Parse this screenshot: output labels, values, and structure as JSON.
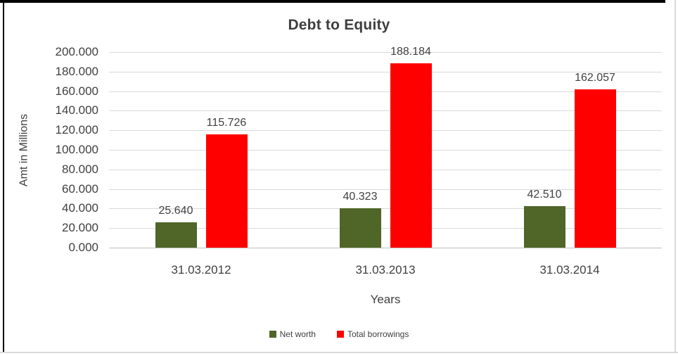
{
  "chart_data": {
    "type": "bar",
    "title": "Debt to Equity",
    "xlabel": "Years",
    "ylabel": "Amt in Millions",
    "categories": [
      "31.03.2012",
      "31.03.2013",
      "31.03.2014"
    ],
    "series": [
      {
        "name": "Net worth",
        "color": "#4F6628",
        "values": [
          25.64,
          40.323,
          42.51
        ],
        "labels": [
          "25.640",
          "40.323",
          "42.510"
        ]
      },
      {
        "name": "Total borrowings",
        "color": "#FF0000",
        "values": [
          115.726,
          188.184,
          162.057
        ],
        "labels": [
          "115.726",
          "188.184",
          "162.057"
        ]
      }
    ],
    "ylim": [
      0,
      200
    ],
    "ytick_step": 20,
    "ytick_labels": [
      "0.000",
      "20.000",
      "40.000",
      "60.000",
      "80.000",
      "100.000",
      "120.000",
      "140.000",
      "160.000",
      "180.000",
      "200.000"
    ],
    "grid": true,
    "legend_position": "bottom"
  },
  "colors": {
    "grid": "#D9D9D9",
    "baseline": "#C0C0C0",
    "text": "#404040",
    "frame_border": "#000000",
    "frame_edge": "#D9D9D9"
  }
}
